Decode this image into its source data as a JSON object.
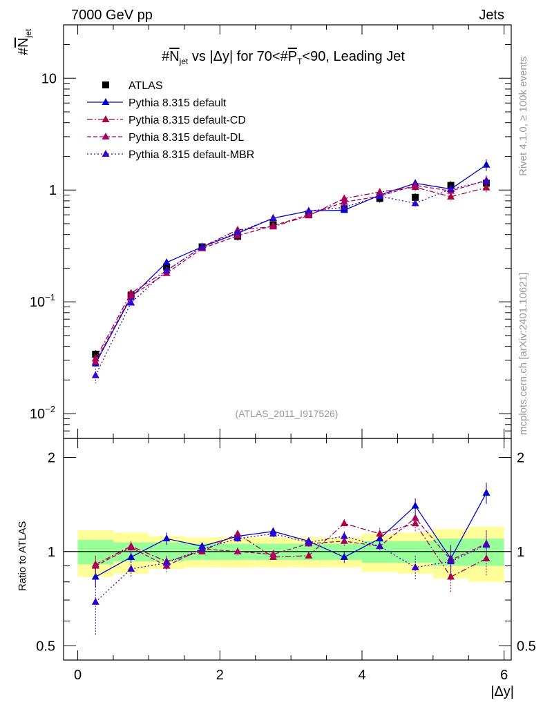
{
  "chart_data": {
    "type": "scatter",
    "header": {
      "left": "7000 GeV pp",
      "right": "Jets"
    },
    "title": "#N̄jet vs |Δy| for 70<#P̄T<90, Leading Jet",
    "title_parts": {
      "p1": "#",
      "p2": "N",
      "p3": "jet",
      "p4": " vs |Δy| for 70<#",
      "p5": "P",
      "p6": "T",
      "p7": "<90, Leading Jet"
    },
    "ylabel_parts": {
      "hash": "#",
      "n": "N",
      "sub": "jet"
    },
    "xlabel": "|Δy|",
    "ratio_ylabel": "Ratio to ATLAS",
    "side_label_1": "Rivet 4.1.0, ≥ 100k events",
    "side_label_2": "mcplots.cern.ch [arXiv:2401.10621]",
    "watermark": "(ATLAS_2011_I917526)",
    "x_range": [
      -0.2,
      6.1
    ],
    "y_range_log": [
      0.006,
      30
    ],
    "ratio_range": [
      0.45,
      2.3
    ],
    "x_ticks": [
      0,
      2,
      4,
      6
    ],
    "x_tick_labels": [
      "0",
      "2",
      "4",
      "6"
    ],
    "y_ticks": [
      0.01,
      0.1,
      1,
      10
    ],
    "y_tick_labels": [
      {
        "base": "10",
        "exp": "−2"
      },
      {
        "base": "10",
        "exp": "−1"
      },
      {
        "base": "1",
        "exp": ""
      },
      {
        "base": "10",
        "exp": ""
      }
    ],
    "ratio_ticks": [
      0.5,
      1,
      2
    ],
    "ratio_tick_labels": [
      "0.5",
      "1",
      "2"
    ],
    "x": [
      0.25,
      0.75,
      1.25,
      1.75,
      2.25,
      2.75,
      3.25,
      3.75,
      4.25,
      4.75,
      5.25,
      5.75
    ],
    "bin_edges": [
      0,
      0.5,
      1,
      1.5,
      2,
      2.5,
      3,
      3.5,
      4,
      4.5,
      5,
      5.5,
      6
    ],
    "atlas": {
      "name": "ATLAS",
      "values": [
        0.034,
        0.115,
        0.205,
        0.31,
        0.385,
        0.49,
        0.61,
        0.68,
        0.84,
        0.86,
        1.1,
        1.15
      ],
      "band_inner": [
        0.09,
        0.07,
        0.07,
        0.06,
        0.06,
        0.06,
        0.06,
        0.06,
        0.08,
        0.08,
        0.1,
        0.1
      ],
      "band_outer": [
        0.17,
        0.15,
        0.12,
        0.11,
        0.11,
        0.11,
        0.11,
        0.11,
        0.14,
        0.15,
        0.18,
        0.2
      ]
    },
    "series": [
      {
        "name": "Pythia 8.315 default",
        "color": "#0000cc",
        "dash": "",
        "values": [
          0.028,
          0.11,
          0.225,
          0.31,
          0.41,
          0.56,
          0.65,
          0.66,
          0.9,
          1.15,
          1.02,
          1.68
        ],
        "ratio": [
          0.83,
          0.96,
          1.1,
          1.04,
          1.12,
          1.16,
          1.08,
          0.96,
          1.1,
          1.4,
          0.95,
          1.54
        ],
        "ratio_err": [
          0.06,
          0.04,
          0.05,
          0.03,
          0.03,
          0.03,
          0.03,
          0.04,
          0.06,
          0.08,
          0.1,
          0.12
        ]
      },
      {
        "name": "Pythia 8.315 default-CD",
        "color": "#aa0044",
        "dash": "8,3,2,3",
        "values": [
          0.031,
          0.12,
          0.19,
          0.31,
          0.44,
          0.47,
          0.59,
          0.84,
          0.96,
          1.06,
          0.87,
          1.05
        ],
        "ratio": [
          0.91,
          1.04,
          0.93,
          1.0,
          1.14,
          0.96,
          0.97,
          1.23,
          1.14,
          1.23,
          0.83,
          0.95
        ],
        "ratio_err": [
          0.06,
          0.04,
          0.04,
          0.03,
          0.03,
          0.03,
          0.03,
          0.04,
          0.05,
          0.07,
          0.09,
          0.11
        ]
      },
      {
        "name": "Pythia 8.315 default-DL",
        "color": "#aa0066",
        "dash": "6,3",
        "values": [
          0.029,
          0.113,
          0.18,
          0.3,
          0.39,
          0.48,
          0.6,
          0.78,
          0.88,
          1.1,
          0.98,
          1.22
        ],
        "ratio": [
          0.9,
          1.03,
          0.9,
          1.02,
          1.0,
          0.98,
          1.06,
          1.08,
          1.04,
          1.28,
          0.94,
          1.06
        ],
        "ratio_err": [
          0.06,
          0.04,
          0.04,
          0.03,
          0.03,
          0.03,
          0.03,
          0.04,
          0.05,
          0.07,
          0.09,
          0.11
        ]
      },
      {
        "name": "Pythia 8.315 default-MBR",
        "color": "#3300cc",
        "dash": "2,3",
        "values": [
          0.022,
          0.098,
          0.19,
          0.31,
          0.42,
          0.56,
          0.65,
          0.7,
          0.88,
          0.76,
          1.02,
          1.2
        ],
        "ratio": [
          0.69,
          0.88,
          0.92,
          1.02,
          1.1,
          1.14,
          1.07,
          1.12,
          1.04,
          0.89,
          0.93,
          1.05
        ],
        "ratio_err": [
          0.15,
          0.05,
          0.04,
          0.03,
          0.03,
          0.03,
          0.03,
          0.04,
          0.05,
          0.08,
          0.09,
          0.11
        ]
      }
    ]
  }
}
